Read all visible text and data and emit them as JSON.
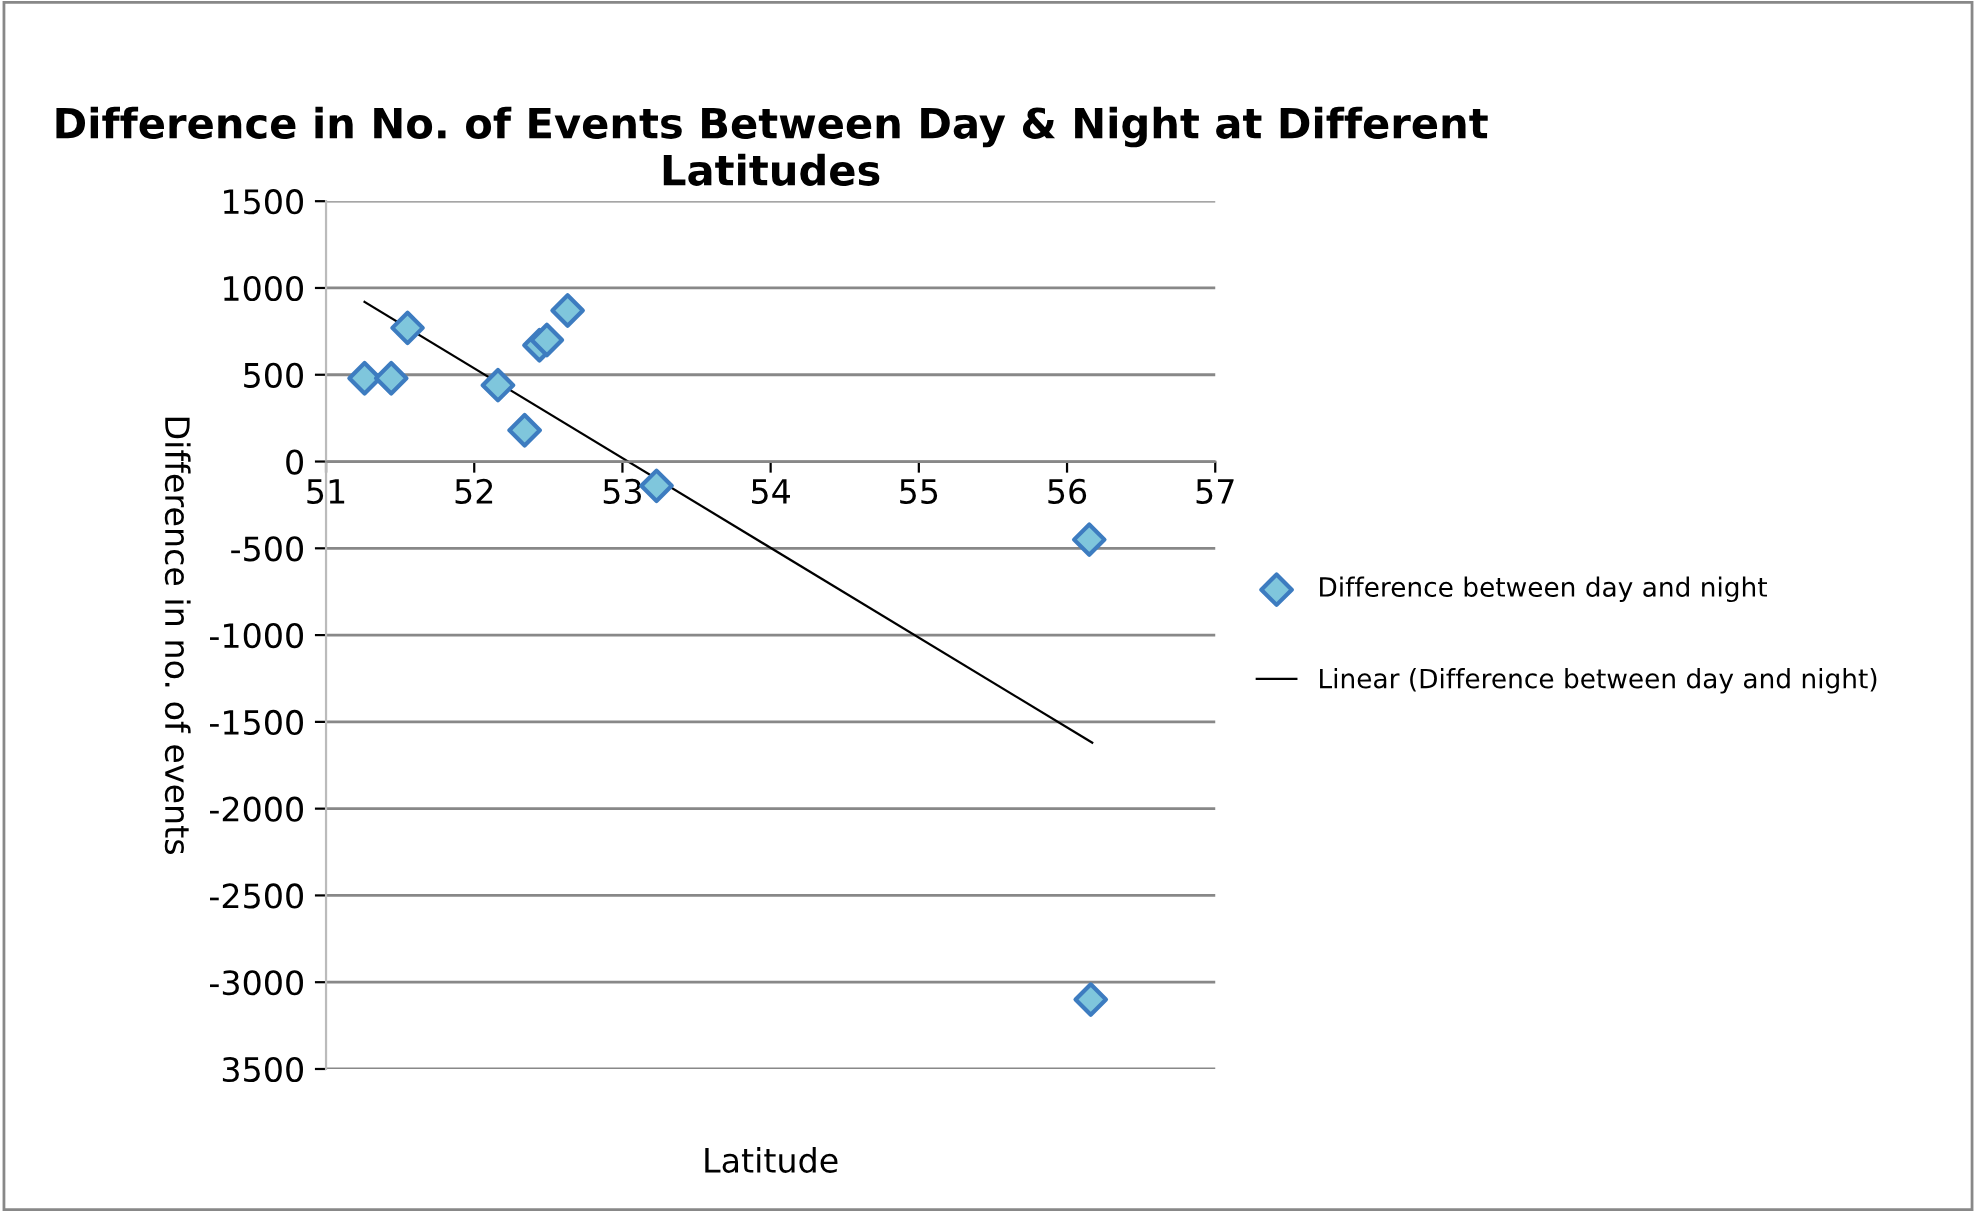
{
  "chart_data": {
    "type": "scatter",
    "title": "Difference in No. of Events Between Day & Night at Different Latitudes",
    "xlabel": "Latitude",
    "ylabel": "Difference in no. of events",
    "series": [
      {
        "name": "Difference between day and night",
        "color": "#7fc6dc",
        "marker": "diamond",
        "x": [
          51.26,
          51.44,
          51.55,
          52.16,
          52.34,
          52.44,
          52.49,
          52.63,
          53.23,
          56.15,
          56.16
        ],
        "values": [
          480,
          480,
          770,
          440,
          180,
          670,
          700,
          870,
          -140,
          -450,
          -3100
        ]
      },
      {
        "name": "Linear (Difference between day and night)",
        "type": "line",
        "color": "#000000",
        "x": [
          51.26,
          56.17
        ],
        "values": [
          920,
          -1620
        ]
      }
    ],
    "xlim": [
      51,
      57
    ],
    "xticks": [
      51,
      52,
      53,
      54,
      55,
      56,
      57
    ],
    "ylim": [
      -3500,
      1500
    ],
    "yticks": [
      1500,
      1000,
      500,
      0,
      -500,
      -1000,
      -1500,
      -2000,
      -2500,
      -3000,
      {
        "value": -3500,
        "label": "3500"
      }
    ],
    "grid": "y",
    "legend": "right"
  }
}
